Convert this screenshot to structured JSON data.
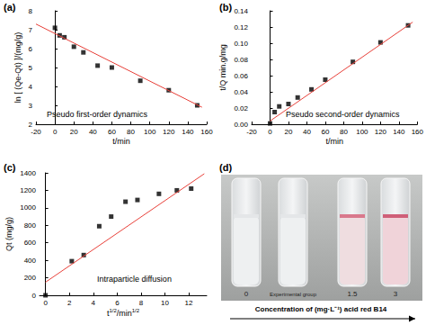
{
  "chart_data": [
    {
      "panel": "(a)",
      "type": "scatter",
      "annotation": "Pseudo first-order dynamics",
      "x_label": "t/min",
      "y_label": "ln [ (Qe-Qt) ]/(mg/g)",
      "xlim": [
        -20,
        160
      ],
      "xticks": [
        -20,
        0,
        20,
        40,
        60,
        80,
        100,
        120,
        140,
        160
      ],
      "ylim": [
        2,
        8
      ],
      "yticks": [
        2,
        3,
        4,
        5,
        6,
        7,
        8
      ],
      "grid": false,
      "series": [
        {
          "type": "scatter",
          "marker": "square",
          "color": "#000000",
          "x": [
            0,
            5,
            10,
            20,
            30,
            45,
            60,
            90,
            120,
            150
          ],
          "values": [
            7.1,
            6.7,
            6.6,
            6.1,
            5.8,
            5.1,
            5.0,
            4.3,
            3.8,
            3.0
          ]
        },
        {
          "type": "line",
          "line_style": "solid",
          "color": "#e8413a",
          "x": [
            -20,
            155
          ],
          "values": [
            7.3,
            2.9
          ]
        }
      ]
    },
    {
      "panel": "(b)",
      "type": "scatter",
      "annotation": "Pseudo second-order dynamics",
      "x_label": "t/min",
      "y_label": "t/Q min.g/mg",
      "xlim": [
        -20,
        160
      ],
      "xticks": [
        -20,
        0,
        20,
        40,
        60,
        80,
        100,
        120,
        140,
        160
      ],
      "ylim": [
        0,
        0.14
      ],
      "yticks": [
        {
          "value": 0,
          "label": "0.00"
        },
        {
          "value": 0.02,
          "label": "0.02"
        },
        {
          "value": 0.04,
          "label": "0.04"
        },
        {
          "value": 0.06,
          "label": "0.06"
        },
        {
          "value": 0.08,
          "label": "0.08"
        },
        {
          "value": 0.1,
          "label": "0.10"
        },
        {
          "value": 0.12,
          "label": "0.12"
        },
        {
          "value": 0.14,
          "label": "0.14"
        }
      ],
      "grid": false,
      "series": [
        {
          "type": "scatter",
          "marker": "square",
          "color": "#000000",
          "x": [
            0,
            5,
            10,
            20,
            30,
            45,
            60,
            90,
            120,
            150
          ],
          "values": [
            0.001,
            0.015,
            0.022,
            0.025,
            0.033,
            0.043,
            0.055,
            0.077,
            0.101,
            0.122
          ]
        },
        {
          "type": "line",
          "line_style": "solid",
          "color": "#e8413a",
          "x": [
            0,
            155
          ],
          "values": [
            0.004,
            0.126
          ]
        }
      ]
    },
    {
      "panel": "(c)",
      "type": "scatter",
      "annotation": "Intraparticle diffusion",
      "x_label": "t1/2/min1/2",
      "y_label": "Qt (mg/g)",
      "xlim": [
        -0.5,
        13.5
      ],
      "xticks": [
        0,
        2,
        4,
        6,
        8,
        10,
        12
      ],
      "ylim": [
        0,
        1400
      ],
      "yticks": [
        0,
        200,
        400,
        600,
        800,
        1000,
        1200,
        1400
      ],
      "grid": false,
      "series": [
        {
          "type": "scatter",
          "marker": "square",
          "color": "#000000",
          "x": [
            0,
            2.2,
            3.2,
            4.5,
            5.5,
            6.7,
            7.7,
            9.5,
            11,
            12.2
          ],
          "values": [
            0,
            390,
            460,
            790,
            900,
            1070,
            1090,
            1160,
            1200,
            1220
          ]
        },
        {
          "type": "line",
          "line_style": "solid",
          "color": "#e8413a",
          "x": [
            0,
            13.3
          ],
          "values": [
            150,
            1390
          ]
        }
      ]
    }
  ],
  "photo": {
    "panel": "(d)",
    "tubes": [
      "0",
      "Experimental group",
      "1.5",
      "3"
    ],
    "caption": "Concentration of (mg·L⁻¹) acid red B14"
  }
}
